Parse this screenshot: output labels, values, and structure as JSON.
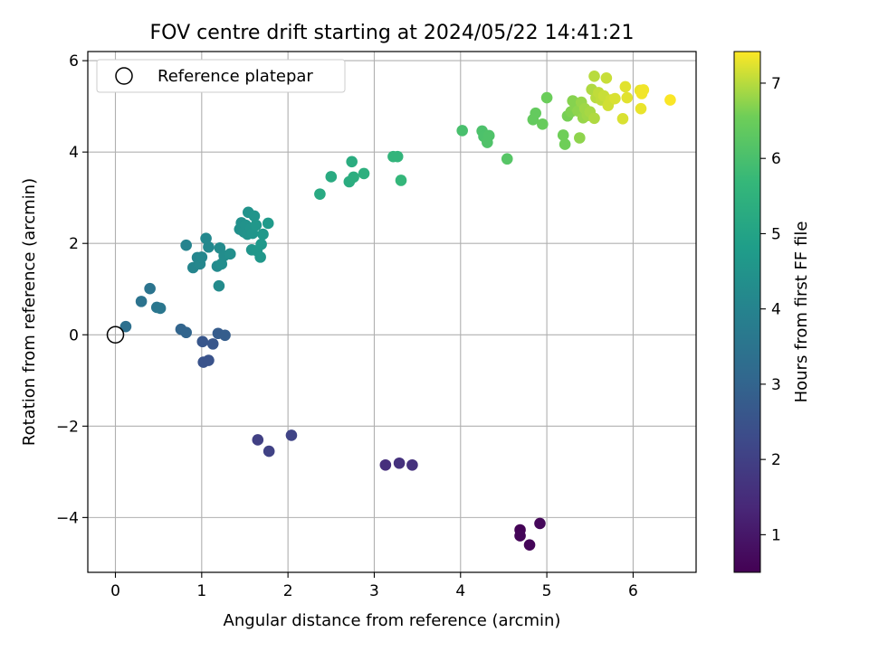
{
  "chart_data": {
    "type": "scatter",
    "title": "FOV centre drift starting at 2024/05/22 14:41:21",
    "xlabel": "Angular distance from reference (arcmin)",
    "ylabel": "Rotation from reference (arcmin)",
    "xlim": [
      -0.32,
      6.73
    ],
    "ylim": [
      -5.2,
      6.2
    ],
    "xticks": [
      "0",
      "1",
      "2",
      "3",
      "4",
      "5",
      "6"
    ],
    "xtick_values": [
      0,
      1,
      2,
      3,
      4,
      5,
      6
    ],
    "yticks": [
      "−4",
      "−2",
      "0",
      "2",
      "4",
      "6"
    ],
    "ytick_values": [
      -4,
      -2,
      0,
      2,
      4,
      6
    ],
    "grid": true,
    "legend": {
      "position": "top-left",
      "entries": [
        {
          "label": "Reference platepar",
          "marker": "hollow-circle"
        }
      ]
    },
    "reference_point": {
      "x": 0,
      "y": 0
    },
    "colormap": "viridis",
    "colorbar": {
      "label": "Hours from first FF file",
      "range": [
        0.5,
        7.42
      ],
      "ticks": [
        "1",
        "2",
        "3",
        "4",
        "5",
        "6",
        "7"
      ],
      "tick_values": [
        1,
        2,
        3,
        4,
        5,
        6,
        7
      ]
    },
    "points": [
      {
        "x": 4.69,
        "y": -4.27,
        "c": 0.55
      },
      {
        "x": 4.69,
        "y": -4.4,
        "c": 0.6
      },
      {
        "x": 4.8,
        "y": -4.6,
        "c": 0.6
      },
      {
        "x": 4.92,
        "y": -4.13,
        "c": 0.65
      },
      {
        "x": 3.13,
        "y": -2.85,
        "c": 1.55
      },
      {
        "x": 3.29,
        "y": -2.81,
        "c": 1.6
      },
      {
        "x": 3.44,
        "y": -2.85,
        "c": 1.6
      },
      {
        "x": 1.65,
        "y": -2.3,
        "c": 2.0
      },
      {
        "x": 1.78,
        "y": -2.55,
        "c": 2.05
      },
      {
        "x": 2.04,
        "y": -2.2,
        "c": 2.1
      },
      {
        "x": 1.02,
        "y": -0.6,
        "c": 2.5
      },
      {
        "x": 1.08,
        "y": -0.56,
        "c": 2.5
      },
      {
        "x": 1.01,
        "y": -0.15,
        "c": 2.6
      },
      {
        "x": 1.13,
        "y": -0.2,
        "c": 2.6
      },
      {
        "x": 1.19,
        "y": 0.03,
        "c": 2.75
      },
      {
        "x": 1.27,
        "y": -0.01,
        "c": 2.8
      },
      {
        "x": 0.76,
        "y": 0.12,
        "c": 3.0
      },
      {
        "x": 0.82,
        "y": 0.05,
        "c": 3.0
      },
      {
        "x": 0.12,
        "y": 0.18,
        "c": 3.35
      },
      {
        "x": 0.3,
        "y": 0.73,
        "c": 3.45
      },
      {
        "x": 0.4,
        "y": 1.01,
        "c": 3.5
      },
      {
        "x": 0.48,
        "y": 0.6,
        "c": 3.55
      },
      {
        "x": 0.52,
        "y": 0.58,
        "c": 3.6
      },
      {
        "x": 0.82,
        "y": 1.96,
        "c": 4.0
      },
      {
        "x": 0.9,
        "y": 1.47,
        "c": 4.05
      },
      {
        "x": 0.95,
        "y": 1.69,
        "c": 4.05
      },
      {
        "x": 0.98,
        "y": 1.55,
        "c": 4.1
      },
      {
        "x": 1.0,
        "y": 1.7,
        "c": 4.1
      },
      {
        "x": 1.05,
        "y": 2.11,
        "c": 4.15
      },
      {
        "x": 1.08,
        "y": 1.92,
        "c": 4.15
      },
      {
        "x": 1.18,
        "y": 1.5,
        "c": 4.2
      },
      {
        "x": 1.2,
        "y": 1.07,
        "c": 4.25
      },
      {
        "x": 1.21,
        "y": 1.9,
        "c": 4.25
      },
      {
        "x": 1.23,
        "y": 1.55,
        "c": 4.3
      },
      {
        "x": 1.26,
        "y": 1.73,
        "c": 4.3
      },
      {
        "x": 1.33,
        "y": 1.77,
        "c": 4.35
      },
      {
        "x": 1.44,
        "y": 2.31,
        "c": 4.4
      },
      {
        "x": 1.46,
        "y": 2.45,
        "c": 4.4
      },
      {
        "x": 1.49,
        "y": 2.25,
        "c": 4.45
      },
      {
        "x": 1.51,
        "y": 2.4,
        "c": 4.45
      },
      {
        "x": 1.53,
        "y": 2.2,
        "c": 4.5
      },
      {
        "x": 1.54,
        "y": 2.68,
        "c": 4.5
      },
      {
        "x": 1.57,
        "y": 2.32,
        "c": 4.5
      },
      {
        "x": 1.58,
        "y": 1.86,
        "c": 4.55
      },
      {
        "x": 1.59,
        "y": 2.22,
        "c": 4.55
      },
      {
        "x": 1.61,
        "y": 2.6,
        "c": 4.55
      },
      {
        "x": 1.63,
        "y": 2.4,
        "c": 4.6
      },
      {
        "x": 1.64,
        "y": 1.84,
        "c": 4.6
      },
      {
        "x": 1.68,
        "y": 1.7,
        "c": 4.6
      },
      {
        "x": 1.69,
        "y": 1.98,
        "c": 4.65
      },
      {
        "x": 1.71,
        "y": 2.2,
        "c": 4.65
      },
      {
        "x": 1.77,
        "y": 2.44,
        "c": 4.7
      },
      {
        "x": 2.37,
        "y": 3.08,
        "c": 5.2
      },
      {
        "x": 2.5,
        "y": 3.46,
        "c": 5.25
      },
      {
        "x": 2.71,
        "y": 3.35,
        "c": 5.3
      },
      {
        "x": 2.74,
        "y": 3.79,
        "c": 5.3
      },
      {
        "x": 2.76,
        "y": 3.45,
        "c": 5.35
      },
      {
        "x": 2.88,
        "y": 3.53,
        "c": 5.4
      },
      {
        "x": 3.22,
        "y": 3.9,
        "c": 5.6
      },
      {
        "x": 3.27,
        "y": 3.9,
        "c": 5.6
      },
      {
        "x": 3.31,
        "y": 3.38,
        "c": 5.65
      },
      {
        "x": 4.02,
        "y": 4.47,
        "c": 6.0
      },
      {
        "x": 4.25,
        "y": 4.46,
        "c": 6.05
      },
      {
        "x": 4.27,
        "y": 4.34,
        "c": 6.05
      },
      {
        "x": 4.31,
        "y": 4.21,
        "c": 6.1
      },
      {
        "x": 4.33,
        "y": 4.36,
        "c": 6.1
      },
      {
        "x": 4.54,
        "y": 3.85,
        "c": 6.2
      },
      {
        "x": 4.84,
        "y": 4.71,
        "c": 6.4
      },
      {
        "x": 4.87,
        "y": 4.85,
        "c": 6.4
      },
      {
        "x": 4.95,
        "y": 4.61,
        "c": 6.45
      },
      {
        "x": 5.0,
        "y": 5.19,
        "c": 6.5
      },
      {
        "x": 5.19,
        "y": 4.37,
        "c": 6.55
      },
      {
        "x": 5.21,
        "y": 4.17,
        "c": 6.55
      },
      {
        "x": 5.24,
        "y": 4.79,
        "c": 6.6
      },
      {
        "x": 5.28,
        "y": 4.88,
        "c": 6.65
      },
      {
        "x": 5.3,
        "y": 5.12,
        "c": 6.7
      },
      {
        "x": 5.33,
        "y": 4.98,
        "c": 6.7
      },
      {
        "x": 5.36,
        "y": 4.9,
        "c": 6.75
      },
      {
        "x": 5.38,
        "y": 4.31,
        "c": 6.75
      },
      {
        "x": 5.4,
        "y": 5.09,
        "c": 6.8
      },
      {
        "x": 5.42,
        "y": 4.75,
        "c": 6.8
      },
      {
        "x": 5.44,
        "y": 4.95,
        "c": 6.85
      },
      {
        "x": 5.47,
        "y": 4.8,
        "c": 6.85
      },
      {
        "x": 5.5,
        "y": 4.88,
        "c": 6.9
      },
      {
        "x": 5.52,
        "y": 5.37,
        "c": 6.95
      },
      {
        "x": 5.55,
        "y": 4.74,
        "c": 6.95
      },
      {
        "x": 5.55,
        "y": 5.66,
        "c": 7.0
      },
      {
        "x": 5.57,
        "y": 5.19,
        "c": 7.0
      },
      {
        "x": 5.6,
        "y": 5.3,
        "c": 7.05
      },
      {
        "x": 5.63,
        "y": 5.14,
        "c": 7.05
      },
      {
        "x": 5.66,
        "y": 5.23,
        "c": 7.1
      },
      {
        "x": 5.69,
        "y": 5.62,
        "c": 7.1
      },
      {
        "x": 5.71,
        "y": 5.02,
        "c": 7.15
      },
      {
        "x": 5.74,
        "y": 5.14,
        "c": 7.15
      },
      {
        "x": 5.79,
        "y": 5.17,
        "c": 7.2
      },
      {
        "x": 5.88,
        "y": 4.73,
        "c": 7.2
      },
      {
        "x": 5.91,
        "y": 5.43,
        "c": 7.25
      },
      {
        "x": 5.93,
        "y": 5.19,
        "c": 7.25
      },
      {
        "x": 6.08,
        "y": 5.35,
        "c": 7.3
      },
      {
        "x": 6.09,
        "y": 4.95,
        "c": 7.3
      },
      {
        "x": 6.1,
        "y": 5.28,
        "c": 7.35
      },
      {
        "x": 6.12,
        "y": 5.36,
        "c": 7.35
      },
      {
        "x": 6.43,
        "y": 5.14,
        "c": 7.4
      }
    ]
  }
}
